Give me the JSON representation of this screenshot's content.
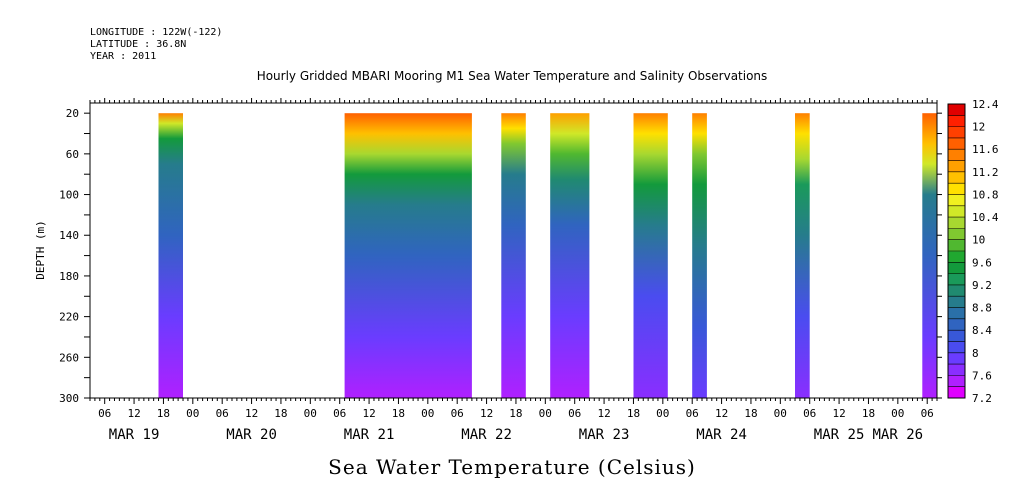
{
  "header": {
    "longitude": "LONGITUDE : 122W(-122)",
    "latitude": "LATITUDE : 36.8N",
    "year": "YEAR : 2011"
  },
  "chart_data": {
    "type": "heatmap",
    "title": "Hourly Gridded MBARI Mooring M1 Sea Water Temperature and Salinity Observations",
    "xlabel": "Sea Water Temperature (Celsius)",
    "ylabel": "DEPTH (m)",
    "x_range": [
      "2011-03-19T03:00",
      "2011-03-26T08:00"
    ],
    "y_range": [
      300,
      10
    ],
    "y_inverted": true,
    "y_ticks": [
      20,
      60,
      100,
      140,
      180,
      220,
      260,
      300
    ],
    "x_hour_ticks": [
      "06",
      "12",
      "18",
      "00",
      "06",
      "12",
      "18",
      "00",
      "06",
      "12",
      "18",
      "00",
      "06",
      "12",
      "18",
      "00",
      "06",
      "12",
      "18",
      "00",
      "06",
      "12",
      "18",
      "00",
      "06",
      "12",
      "18",
      "00",
      "06"
    ],
    "x_date_labels": [
      {
        "label": "MAR 19",
        "date": "2011-03-19T12:00"
      },
      {
        "label": "MAR 20",
        "date": "2011-03-20T12:00"
      },
      {
        "label": "MAR 21",
        "date": "2011-03-21T12:00"
      },
      {
        "label": "MAR 22",
        "date": "2011-03-22T12:00"
      },
      {
        "label": "MAR 23",
        "date": "2011-03-23T12:00"
      },
      {
        "label": "MAR 24",
        "date": "2011-03-24T12:00"
      },
      {
        "label": "MAR 25",
        "date": "2011-03-25T12:00"
      },
      {
        "label": "MAR 26",
        "date": "2011-03-26T00:00"
      }
    ],
    "colorbar": {
      "min": 7.2,
      "max": 12.4,
      "step": 0.2,
      "labels": [
        7.2,
        7.6,
        8,
        8.4,
        8.8,
        9.2,
        9.6,
        10,
        10.4,
        10.8,
        11.2,
        11.6,
        12,
        12.4
      ],
      "colors": [
        "#e000ff",
        "#b020ff",
        "#8a2eff",
        "#6a3cff",
        "#4a4cf0",
        "#3858d8",
        "#3064c0",
        "#2a70a8",
        "#267c8c",
        "#208a70",
        "#1a9a5a",
        "#139a3c",
        "#20a830",
        "#50b830",
        "#80c830",
        "#a8d830",
        "#d0e828",
        "#f0f020",
        "#ffe000",
        "#ffc000",
        "#ffa000",
        "#ff8000",
        "#ff6000",
        "#ff4000",
        "#ff2000",
        "#e00000",
        "#a00000"
      ]
    },
    "segments": [
      {
        "start": "2011-03-19T17:00",
        "end": "2011-03-19T22:00",
        "profile": [
          [
            20,
            11.6
          ],
          [
            30,
            10.6
          ],
          [
            45,
            9.5
          ],
          [
            70,
            8.8
          ],
          [
            140,
            8.5
          ],
          [
            220,
            8.0
          ],
          [
            300,
            7.4
          ]
        ]
      },
      {
        "start": "2011-03-21T07:00",
        "end": "2011-03-22T09:00",
        "profile": [
          [
            20,
            11.7
          ],
          [
            40,
            11.2
          ],
          [
            60,
            10.3
          ],
          [
            80,
            9.6
          ],
          [
            110,
            8.9
          ],
          [
            160,
            8.4
          ],
          [
            240,
            7.9
          ],
          [
            300,
            7.5
          ]
        ]
      },
      {
        "start": "2011-03-22T15:00",
        "end": "2011-03-22T20:00",
        "profile": [
          [
            20,
            11.4
          ],
          [
            35,
            10.8
          ],
          [
            50,
            10.1
          ],
          [
            80,
            9.0
          ],
          [
            130,
            8.6
          ],
          [
            220,
            8.0
          ],
          [
            300,
            7.6
          ]
        ]
      },
      {
        "start": "2011-03-23T01:00",
        "end": "2011-03-23T09:00",
        "profile": [
          [
            20,
            11.3
          ],
          [
            40,
            10.6
          ],
          [
            60,
            10.0
          ],
          [
            85,
            9.2
          ],
          [
            130,
            8.6
          ],
          [
            220,
            8.0
          ],
          [
            300,
            7.5
          ]
        ]
      },
      {
        "start": "2011-03-23T18:00",
        "end": "2011-03-24T01:00",
        "profile": [
          [
            20,
            11.4
          ],
          [
            40,
            10.9
          ],
          [
            60,
            10.3
          ],
          [
            90,
            9.5
          ],
          [
            130,
            8.8
          ],
          [
            200,
            8.2
          ],
          [
            300,
            7.8
          ]
        ]
      },
      {
        "start": "2011-03-24T06:00",
        "end": "2011-03-24T09:00",
        "profile": [
          [
            20,
            11.4
          ],
          [
            40,
            10.8
          ],
          [
            60,
            10.2
          ],
          [
            90,
            9.4
          ],
          [
            150,
            8.8
          ],
          [
            230,
            8.3
          ],
          [
            300,
            8.0
          ]
        ]
      },
      {
        "start": "2011-03-25T03:00",
        "end": "2011-03-25T06:00",
        "profile": [
          [
            20,
            11.6
          ],
          [
            40,
            11.0
          ],
          [
            65,
            10.3
          ],
          [
            90,
            9.3
          ],
          [
            140,
            8.8
          ],
          [
            220,
            8.2
          ],
          [
            300,
            7.8
          ]
        ]
      },
      {
        "start": "2011-03-26T05:00",
        "end": "2011-03-26T08:00",
        "profile": [
          [
            20,
            11.7
          ],
          [
            50,
            11.2
          ],
          [
            70,
            10.4
          ],
          [
            100,
            9.0
          ],
          [
            160,
            8.5
          ],
          [
            240,
            8.0
          ],
          [
            300,
            7.5
          ]
        ]
      }
    ]
  }
}
